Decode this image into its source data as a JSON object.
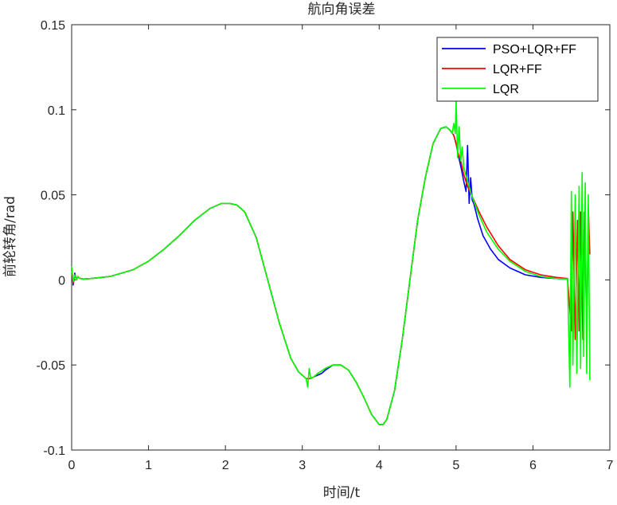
{
  "chart_data": {
    "type": "line",
    "title": "航向角误差",
    "xlabel": "时间/t",
    "ylabel": "前轮转角/rad",
    "xlim": [
      0,
      7
    ],
    "ylim": [
      -0.1,
      0.15
    ],
    "xticks": [
      0,
      1,
      2,
      3,
      4,
      5,
      6,
      7
    ],
    "xtick_labels": [
      "0",
      "1",
      "2",
      "3",
      "4",
      "5",
      "6",
      "7"
    ],
    "yticks": [
      -0.1,
      -0.05,
      0,
      0.05,
      0.1,
      0.15
    ],
    "ytick_labels": [
      "-0.1",
      "-0.05",
      "0",
      "0.05",
      "0.1",
      "0.15"
    ],
    "grid": false,
    "legend_position": "top-right",
    "series": [
      {
        "name": "PSO+LQR+FF",
        "color": "#0000ff",
        "x": [
          0.0,
          0.02,
          0.04,
          0.06,
          0.08,
          0.1,
          0.15,
          0.25,
          0.5,
          0.8,
          1.0,
          1.2,
          1.4,
          1.6,
          1.8,
          1.95,
          2.05,
          2.15,
          2.25,
          2.4,
          2.55,
          2.7,
          2.85,
          2.95,
          3.05,
          3.1,
          3.15,
          3.2,
          3.25,
          3.3,
          3.4,
          3.5,
          3.6,
          3.7,
          3.8,
          3.9,
          4.0,
          4.05,
          4.1,
          4.2,
          4.3,
          4.4,
          4.5,
          4.6,
          4.7,
          4.8,
          4.87,
          4.92,
          4.97,
          5.0,
          5.03,
          5.07,
          5.1,
          5.13,
          5.15,
          5.17,
          5.19,
          5.21,
          5.23,
          5.28,
          5.35,
          5.45,
          5.55,
          5.7,
          5.9,
          6.1,
          6.3,
          6.45
        ],
        "y": [
          0.007,
          -0.003,
          0.004,
          0.0,
          0.002,
          0.001,
          0.0005,
          0.0008,
          0.002,
          0.006,
          0.011,
          0.018,
          0.026,
          0.035,
          0.042,
          0.045,
          0.045,
          0.044,
          0.04,
          0.025,
          0.0,
          -0.025,
          -0.046,
          -0.054,
          -0.058,
          -0.058,
          -0.057,
          -0.056,
          -0.055,
          -0.053,
          -0.05,
          -0.05,
          -0.053,
          -0.06,
          -0.069,
          -0.079,
          -0.085,
          -0.085,
          -0.082,
          -0.065,
          -0.035,
          0.0,
          0.035,
          0.06,
          0.08,
          0.089,
          0.09,
          0.088,
          0.085,
          0.08,
          0.073,
          0.065,
          0.058,
          0.052,
          0.079,
          0.045,
          0.06,
          0.047,
          0.045,
          0.036,
          0.026,
          0.018,
          0.012,
          0.007,
          0.003,
          0.0015,
          0.0008,
          0.0005
        ]
      },
      {
        "name": "LQR+FF",
        "color": "#ff0000",
        "x": [
          0.0,
          0.02,
          0.04,
          0.06,
          0.08,
          0.1,
          0.15,
          0.25,
          0.5,
          0.8,
          1.0,
          1.2,
          1.4,
          1.6,
          1.8,
          1.95,
          2.05,
          2.15,
          2.25,
          2.4,
          2.55,
          2.7,
          2.85,
          2.95,
          3.05,
          3.1,
          3.15,
          3.2,
          3.3,
          3.4,
          3.5,
          3.6,
          3.7,
          3.8,
          3.9,
          4.0,
          4.05,
          4.1,
          4.2,
          4.3,
          4.4,
          4.5,
          4.6,
          4.7,
          4.8,
          4.87,
          4.92,
          4.97,
          5.0,
          5.03,
          5.06,
          5.1,
          5.15,
          5.2,
          5.25,
          5.3,
          5.4,
          5.55,
          5.7,
          5.9,
          6.1,
          6.3,
          6.45,
          6.5,
          6.52,
          6.55,
          6.58,
          6.6,
          6.62,
          6.65,
          6.67,
          6.7,
          6.72,
          6.74
        ],
        "y": [
          0.006,
          -0.002,
          0.003,
          0.0,
          0.002,
          0.001,
          0.0005,
          0.0008,
          0.002,
          0.006,
          0.011,
          0.018,
          0.026,
          0.035,
          0.042,
          0.045,
          0.045,
          0.044,
          0.04,
          0.025,
          0.0,
          -0.025,
          -0.046,
          -0.054,
          -0.058,
          -0.058,
          -0.057,
          -0.055,
          -0.052,
          -0.05,
          -0.05,
          -0.053,
          -0.06,
          -0.069,
          -0.079,
          -0.085,
          -0.085,
          -0.082,
          -0.065,
          -0.035,
          0.0,
          0.035,
          0.06,
          0.08,
          0.089,
          0.09,
          0.088,
          0.085,
          0.08,
          0.074,
          0.07,
          0.062,
          0.055,
          0.05,
          0.045,
          0.04,
          0.031,
          0.02,
          0.012,
          0.006,
          0.003,
          0.0015,
          0.0008,
          -0.03,
          0.04,
          -0.035,
          0.035,
          -0.03,
          0.04,
          -0.035,
          0.04,
          -0.03,
          0.043,
          0.015
        ]
      },
      {
        "name": "LQR",
        "color": "#00ff00",
        "x": [
          0.0,
          0.02,
          0.04,
          0.06,
          0.08,
          0.1,
          0.15,
          0.25,
          0.5,
          0.8,
          1.0,
          1.2,
          1.4,
          1.6,
          1.8,
          1.95,
          2.05,
          2.15,
          2.25,
          2.4,
          2.55,
          2.7,
          2.85,
          2.95,
          3.05,
          3.07,
          3.09,
          3.11,
          3.15,
          3.2,
          3.3,
          3.4,
          3.5,
          3.6,
          3.7,
          3.8,
          3.9,
          4.0,
          4.05,
          4.1,
          4.2,
          4.3,
          4.4,
          4.5,
          4.6,
          4.7,
          4.8,
          4.87,
          4.92,
          4.95,
          4.97,
          4.99,
          5.0,
          5.02,
          5.04,
          5.06,
          5.08,
          5.1,
          5.15,
          5.2,
          5.3,
          5.4,
          5.55,
          5.7,
          5.9,
          6.1,
          6.3,
          6.45,
          6.48,
          6.5,
          6.52,
          6.55,
          6.57,
          6.6,
          6.62,
          6.64,
          6.66,
          6.68,
          6.7,
          6.72,
          6.74
        ],
        "y": [
          0.008,
          -0.001,
          0.003,
          0.0,
          0.002,
          0.001,
          0.0005,
          0.0008,
          0.002,
          0.006,
          0.011,
          0.018,
          0.026,
          0.035,
          0.042,
          0.045,
          0.045,
          0.044,
          0.04,
          0.025,
          0.0,
          -0.025,
          -0.046,
          -0.054,
          -0.058,
          -0.063,
          -0.052,
          -0.058,
          -0.057,
          -0.055,
          -0.052,
          -0.05,
          -0.05,
          -0.053,
          -0.06,
          -0.069,
          -0.079,
          -0.085,
          -0.085,
          -0.082,
          -0.065,
          -0.035,
          0.0,
          0.035,
          0.06,
          0.08,
          0.089,
          0.09,
          0.088,
          0.086,
          0.092,
          0.086,
          0.106,
          0.072,
          0.09,
          0.07,
          0.078,
          0.066,
          0.058,
          0.05,
          0.038,
          0.028,
          0.018,
          0.011,
          0.005,
          0.002,
          0.0008,
          0.0005,
          -0.063,
          0.052,
          -0.05,
          0.05,
          -0.055,
          0.055,
          -0.052,
          0.063,
          -0.045,
          0.057,
          -0.055,
          0.05,
          -0.059
        ]
      }
    ]
  }
}
